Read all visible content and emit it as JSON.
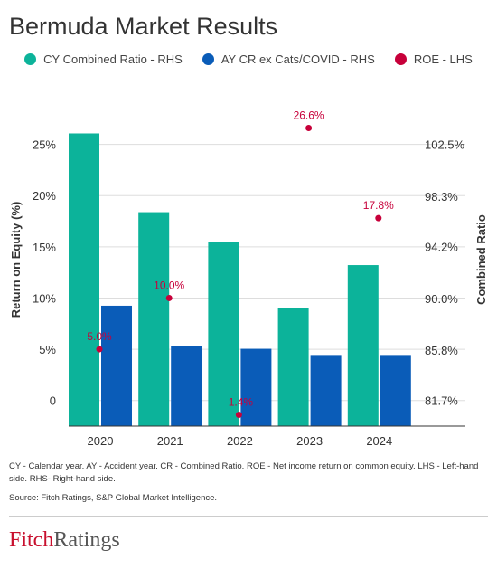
{
  "title": "Bermuda Market Results",
  "colors": {
    "cy": "#0cb39a",
    "ay": "#0a5cb8",
    "roe": "#c7003a",
    "grid": "#dddddd",
    "axis": "#333333"
  },
  "chart_data": {
    "type": "bar",
    "title": "Bermuda Market Results",
    "categories": [
      "2020",
      "2021",
      "2022",
      "2023",
      "2024"
    ],
    "series": [
      {
        "name": "CY Combined Ratio - RHS",
        "axis": "right",
        "kind": "bar",
        "values": [
          103.4,
          97.0,
          94.6,
          89.2,
          92.7
        ]
      },
      {
        "name": "AY CR ex Cats/COVID - RHS",
        "axis": "right",
        "kind": "bar",
        "values": [
          89.4,
          86.1,
          85.9,
          85.4,
          85.4
        ]
      },
      {
        "name": "ROE - LHS",
        "axis": "left",
        "kind": "scatter",
        "values": [
          5.0,
          10.0,
          -1.4,
          26.6,
          17.8
        ],
        "labels": [
          "5.0%",
          "10.0%",
          "-1.4%",
          "26.6%",
          "17.8%"
        ]
      }
    ],
    "left_axis": {
      "label": "Return on Equity (%)",
      "ticks": [
        0,
        5,
        10,
        15,
        20,
        25
      ],
      "tick_labels": [
        "0",
        "5%",
        "10%",
        "15%",
        "20%",
        "25%"
      ],
      "range": [
        -2.5,
        30
      ]
    },
    "right_axis": {
      "label": "Combined Ratio",
      "ticks": [
        81.7,
        85.8,
        90.0,
        94.2,
        98.3,
        102.5
      ],
      "tick_labels": [
        "81.7%",
        "85.8%",
        "90.0%",
        "94.2%",
        "98.3%",
        "102.5%"
      ],
      "range": [
        79.62,
        106.67
      ]
    },
    "grid": true,
    "legend": "top"
  },
  "footnote_1": "CY - Calendar year. AY - Accident year. CR - Combined Ratio. ROE - Net income return on common equity.  LHS - Left-hand side. RHS- Right-hand side.",
  "footnote_2": "Source: Fitch Ratings, S&P Global Market Intelligence.",
  "logo": {
    "part1": "Fitch",
    "part2": "Ratings"
  }
}
